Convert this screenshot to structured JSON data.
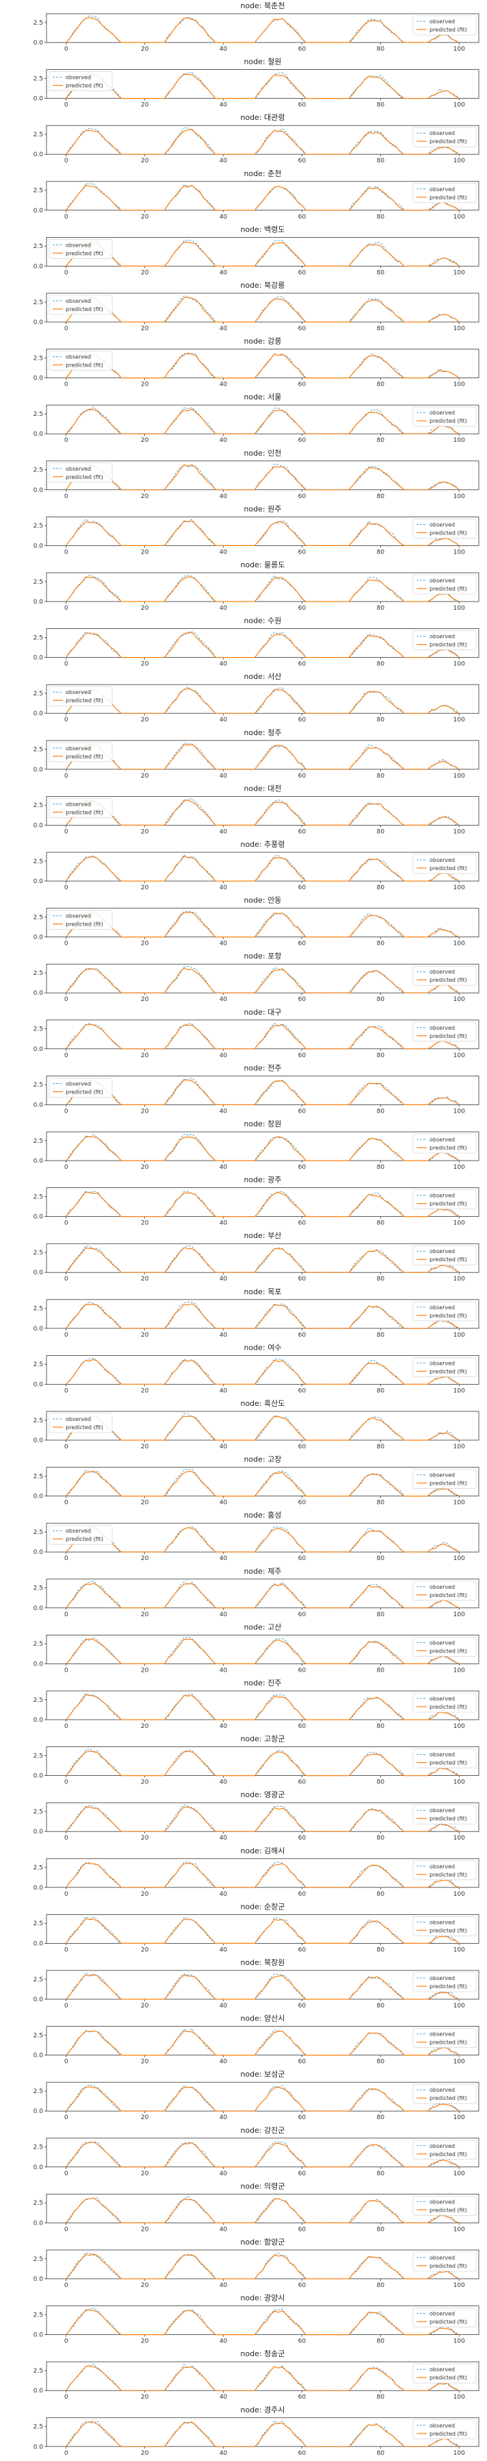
{
  "chart_data": {
    "type": "line",
    "title_prefix": "node: ",
    "nodes": [
      "북춘천",
      "철원",
      "대관령",
      "춘천",
      "백령도",
      "북강릉",
      "강릉",
      "서울",
      "인천",
      "원주",
      "울릉도",
      "수원",
      "서산",
      "청주",
      "대전",
      "추풍령",
      "안동",
      "포항",
      "대구",
      "전주",
      "창원",
      "광주",
      "부산",
      "목포",
      "여수",
      "흑산도",
      "고창",
      "홍성",
      "제주",
      "고산",
      "진주",
      "고창군",
      "영광군",
      "김해시",
      "순창군",
      "북창원",
      "양산시",
      "보성군",
      "강진군",
      "의령군",
      "함양군",
      "광양시",
      "청송군",
      "경주시"
    ],
    "legend": {
      "observed": "observed",
      "predicted": "predicted (fit)"
    },
    "legend_positions": [
      "right",
      "left",
      "right",
      "right",
      "left",
      "left",
      "left",
      "right",
      "left",
      "right",
      "right",
      "right",
      "left",
      "left",
      "left",
      "right",
      "left",
      "right",
      "right",
      "left",
      "right",
      "right",
      "right",
      "right",
      "right",
      "left",
      "right",
      "left",
      "right",
      "right",
      "right",
      "right",
      "right",
      "right",
      "right",
      "right",
      "right",
      "right",
      "right",
      "right",
      "right",
      "right",
      "right",
      "right"
    ],
    "series_colors": {
      "observed": "#4fa3d9",
      "predicted": "#ff7f0e"
    },
    "x_ticks": [
      "0",
      "20",
      "40",
      "60",
      "80",
      "100"
    ],
    "y_ticks": [
      "0.0",
      "2.5"
    ],
    "xlim": [
      -5,
      105
    ],
    "ylim": [
      0,
      3.6
    ],
    "cycles": [
      {
        "start": 0,
        "end": 14,
        "peak_x": 6,
        "observed_peak": 3.1,
        "predicted_peak": 3.0
      },
      {
        "start": 25,
        "end": 38,
        "peak_x": 31,
        "observed_peak": 3.1,
        "predicted_peak": 3.0
      },
      {
        "start": 48,
        "end": 61,
        "peak_x": 54,
        "observed_peak": 3.0,
        "predicted_peak": 2.9
      },
      {
        "start": 72,
        "end": 86,
        "peak_x": 78,
        "observed_peak": 2.8,
        "predicted_peak": 2.7
      },
      {
        "start": 92,
        "end": 100,
        "peak_x": 96,
        "observed_peak": 1.0,
        "predicted_peak": 0.9
      }
    ]
  }
}
